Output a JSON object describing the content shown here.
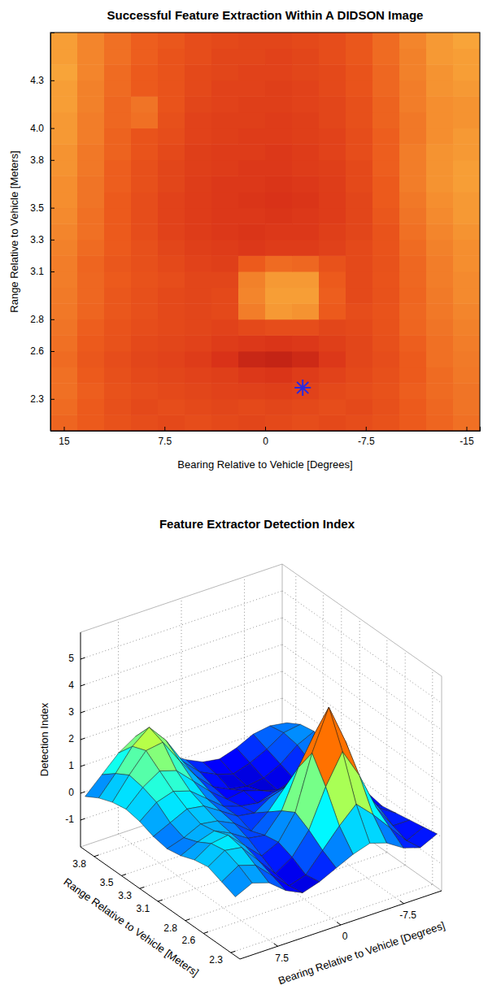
{
  "chart_data": [
    {
      "type": "heatmap",
      "title": "Successful Feature Extraction Within A DIDSON Image",
      "x_label": "Bearing Relative to Vehicle [Degrees]",
      "y_label": "Range Relative to Vehicle [Meters]",
      "xlim": [
        16,
        -16
      ],
      "xticks": [
        15,
        7.5,
        0,
        -7.5,
        -15
      ],
      "ylim": [
        2.1,
        4.6
      ],
      "yticks": [
        2.3,
        2.6,
        2.8,
        3.1,
        3.3,
        3.5,
        3.8,
        {
          "value": 4,
          "label": "4.0"
        },
        4.3
      ],
      "zlim": [
        0,
        1
      ],
      "x_bins": [
        16,
        14,
        12,
        10,
        8,
        6,
        4,
        2,
        0,
        -2,
        -4,
        -6,
        -8,
        -10,
        -12,
        -14,
        -16
      ],
      "y_bins": [
        2.1,
        2.2,
        2.3,
        2.4,
        2.5,
        2.6,
        2.7,
        2.8,
        2.9,
        3.0,
        3.1,
        3.2,
        3.3,
        3.4,
        3.5,
        3.6,
        3.7,
        3.8,
        3.9,
        4.0,
        4.1,
        4.2,
        4.3,
        4.4,
        4.5,
        4.6
      ],
      "cells": [
        [
          0.55,
          0.5,
          0.45,
          0.42,
          0.4,
          0.42,
          0.4,
          0.38,
          0.4,
          0.42,
          0.4,
          0.42,
          0.45,
          0.5,
          0.55,
          0.6
        ],
        [
          0.58,
          0.5,
          0.44,
          0.4,
          0.42,
          0.4,
          0.38,
          0.4,
          0.38,
          0.4,
          0.42,
          0.4,
          0.44,
          0.5,
          0.56,
          0.62
        ],
        [
          0.6,
          0.52,
          0.45,
          0.42,
          0.4,
          0.38,
          0.36,
          0.35,
          0.34,
          0.36,
          0.4,
          0.42,
          0.45,
          0.52,
          0.58,
          0.62
        ],
        [
          0.6,
          0.5,
          0.44,
          0.4,
          0.38,
          0.36,
          0.34,
          0.3,
          0.28,
          0.32,
          0.36,
          0.4,
          0.44,
          0.5,
          0.58,
          0.64
        ],
        [
          0.58,
          0.48,
          0.42,
          0.38,
          0.36,
          0.32,
          0.26,
          0.18,
          0.16,
          0.2,
          0.3,
          0.38,
          0.42,
          0.5,
          0.6,
          0.65
        ],
        [
          0.6,
          0.5,
          0.45,
          0.4,
          0.38,
          0.36,
          0.32,
          0.3,
          0.28,
          0.3,
          0.34,
          0.38,
          0.44,
          0.52,
          0.6,
          0.66
        ],
        [
          0.62,
          0.52,
          0.46,
          0.42,
          0.4,
          0.38,
          0.36,
          0.4,
          0.42,
          0.42,
          0.38,
          0.4,
          0.45,
          0.55,
          0.62,
          0.68
        ],
        [
          0.64,
          0.55,
          0.48,
          0.44,
          0.4,
          0.38,
          0.4,
          0.66,
          0.78,
          0.76,
          0.5,
          0.42,
          0.46,
          0.56,
          0.64,
          0.7
        ],
        [
          0.65,
          0.56,
          0.48,
          0.44,
          0.4,
          0.38,
          0.4,
          0.7,
          0.8,
          0.8,
          0.52,
          0.4,
          0.45,
          0.55,
          0.65,
          0.72
        ],
        [
          0.66,
          0.56,
          0.5,
          0.45,
          0.42,
          0.38,
          0.38,
          0.68,
          0.78,
          0.78,
          0.5,
          0.4,
          0.46,
          0.56,
          0.66,
          0.72
        ],
        [
          0.66,
          0.55,
          0.48,
          0.44,
          0.4,
          0.36,
          0.34,
          0.5,
          0.58,
          0.56,
          0.45,
          0.4,
          0.45,
          0.56,
          0.66,
          0.74
        ],
        [
          0.68,
          0.58,
          0.5,
          0.44,
          0.38,
          0.34,
          0.32,
          0.3,
          0.32,
          0.32,
          0.35,
          0.4,
          0.46,
          0.58,
          0.68,
          0.74
        ],
        [
          0.7,
          0.6,
          0.5,
          0.42,
          0.36,
          0.32,
          0.3,
          0.28,
          0.3,
          0.3,
          0.34,
          0.38,
          0.46,
          0.6,
          0.7,
          0.76
        ],
        [
          0.72,
          0.6,
          0.5,
          0.42,
          0.36,
          0.32,
          0.3,
          0.3,
          0.28,
          0.3,
          0.32,
          0.38,
          0.48,
          0.62,
          0.72,
          0.78
        ],
        [
          0.74,
          0.62,
          0.5,
          0.42,
          0.36,
          0.32,
          0.3,
          0.28,
          0.26,
          0.28,
          0.32,
          0.38,
          0.5,
          0.64,
          0.74,
          0.78
        ],
        [
          0.74,
          0.62,
          0.52,
          0.44,
          0.38,
          0.33,
          0.3,
          0.3,
          0.28,
          0.3,
          0.33,
          0.4,
          0.5,
          0.66,
          0.76,
          0.8
        ],
        [
          0.76,
          0.64,
          0.52,
          0.44,
          0.38,
          0.34,
          0.32,
          0.3,
          0.3,
          0.32,
          0.34,
          0.4,
          0.52,
          0.66,
          0.76,
          0.8
        ],
        [
          0.76,
          0.64,
          0.54,
          0.46,
          0.4,
          0.34,
          0.32,
          0.32,
          0.3,
          0.32,
          0.36,
          0.42,
          0.52,
          0.66,
          0.76,
          0.78
        ],
        [
          0.78,
          0.66,
          0.54,
          0.46,
          0.42,
          0.36,
          0.34,
          0.32,
          0.32,
          0.34,
          0.36,
          0.42,
          0.52,
          0.64,
          0.74,
          0.78
        ],
        [
          0.78,
          0.66,
          0.56,
          0.6,
          0.44,
          0.36,
          0.34,
          0.34,
          0.32,
          0.34,
          0.38,
          0.44,
          0.54,
          0.64,
          0.74,
          0.76
        ],
        [
          0.8,
          0.68,
          0.56,
          0.62,
          0.46,
          0.38,
          0.36,
          0.34,
          0.34,
          0.36,
          0.38,
          0.44,
          0.54,
          0.66,
          0.74,
          0.76
        ],
        [
          0.8,
          0.68,
          0.58,
          0.5,
          0.46,
          0.4,
          0.36,
          0.36,
          0.34,
          0.36,
          0.4,
          0.46,
          0.56,
          0.66,
          0.76,
          0.78
        ],
        [
          0.82,
          0.7,
          0.58,
          0.5,
          0.46,
          0.4,
          0.38,
          0.36,
          0.36,
          0.38,
          0.4,
          0.46,
          0.56,
          0.68,
          0.76,
          0.8
        ],
        [
          0.8,
          0.7,
          0.6,
          0.52,
          0.46,
          0.42,
          0.38,
          0.38,
          0.36,
          0.38,
          0.42,
          0.48,
          0.58,
          0.68,
          0.78,
          0.8
        ],
        [
          0.8,
          0.7,
          0.6,
          0.52,
          0.48,
          0.42,
          0.4,
          0.38,
          0.38,
          0.4,
          0.42,
          0.48,
          0.58,
          0.7,
          0.78,
          0.82
        ]
      ],
      "series": [
        {
          "type": "scatter",
          "x": [
            -2.8
          ],
          "values": [
            2.37
          ],
          "marker": "asterisk",
          "color": "#2a2ae0"
        }
      ]
    },
    {
      "type": "surface",
      "title": "Feature Extractor Detection Index",
      "x_label": "Bearing Relative to Vehicle [Degrees]",
      "y_label": "Range Relative to Vehicle [Meters]",
      "z_label": "Detection Index",
      "grid": true,
      "xlim": [
        12,
        -12
      ],
      "xticks": [
        7.5,
        0,
        -7.5
      ],
      "ylim": [
        2.2,
        3.95
      ],
      "yticks": [
        2.3,
        2.6,
        2.8,
        3.1,
        3.3,
        3.5,
        3.8
      ],
      "zlim": [
        -2,
        6
      ],
      "zticks": [
        -1,
        0,
        1,
        2,
        3,
        4,
        5
      ],
      "clim": [
        -1,
        4.5
      ],
      "x": [
        12,
        10,
        8,
        6,
        4,
        2,
        0,
        -2,
        -4,
        -6,
        -8,
        -10,
        -12
      ],
      "y": [
        2.25,
        2.4,
        2.55,
        2.7,
        2.85,
        3.0,
        3.15,
        3.3,
        3.45,
        3.6,
        3.75,
        3.9
      ],
      "z": [
        [
          0.2,
          0.5,
          0.3,
          -0.2,
          -0.5,
          -0.3,
          0.0,
          0.3,
          0.5,
          0.3,
          -0.1,
          -0.3,
          0.0
        ],
        [
          0.4,
          0.8,
          0.6,
          0.0,
          -0.6,
          -0.4,
          0.3,
          1.0,
          1.6,
          1.0,
          0.3,
          -0.4,
          -0.1
        ],
        [
          0.6,
          1.0,
          0.9,
          0.2,
          -0.5,
          -0.1,
          0.7,
          2.1,
          3.2,
          2.1,
          0.7,
          -0.2,
          -0.2
        ],
        [
          0.5,
          0.9,
          1.0,
          0.4,
          -0.2,
          0.1,
          1.0,
          3.0,
          4.5,
          3.0,
          1.0,
          0.1,
          -0.3
        ],
        [
          0.3,
          0.6,
          0.8,
          0.5,
          0.1,
          0.0,
          0.7,
          2.1,
          3.2,
          2.1,
          0.7,
          -0.1,
          -0.4
        ],
        [
          0.2,
          0.4,
          0.7,
          0.6,
          0.3,
          -0.2,
          0.3,
          1.0,
          1.6,
          1.0,
          0.3,
          -0.3,
          -0.3
        ],
        [
          0.3,
          0.6,
          0.9,
          0.8,
          0.4,
          0.0,
          -0.1,
          0.3,
          0.5,
          0.3,
          -0.2,
          -0.3,
          0.0
        ],
        [
          0.5,
          1.0,
          1.2,
          1.0,
          0.5,
          0.0,
          -0.2,
          -0.3,
          -0.1,
          -0.3,
          -0.5,
          -0.2,
          0.2
        ],
        [
          0.6,
          1.2,
          1.6,
          1.4,
          0.8,
          0.2,
          -0.3,
          -0.2,
          -0.4,
          -0.6,
          -0.4,
          0.0,
          0.4
        ],
        [
          0.5,
          1.3,
          2.0,
          2.1,
          1.2,
          0.4,
          -0.2,
          -0.5,
          -0.6,
          -0.5,
          -0.2,
          0.3,
          0.6
        ],
        [
          0.3,
          1.0,
          1.8,
          2.3,
          1.6,
          0.6,
          0.0,
          -0.3,
          -0.5,
          -0.3,
          0.0,
          0.4,
          0.5
        ],
        [
          0.0,
          0.6,
          1.2,
          1.6,
          1.2,
          0.5,
          0.1,
          -0.2,
          -0.3,
          -0.1,
          0.2,
          0.3,
          0.2
        ]
      ]
    }
  ]
}
